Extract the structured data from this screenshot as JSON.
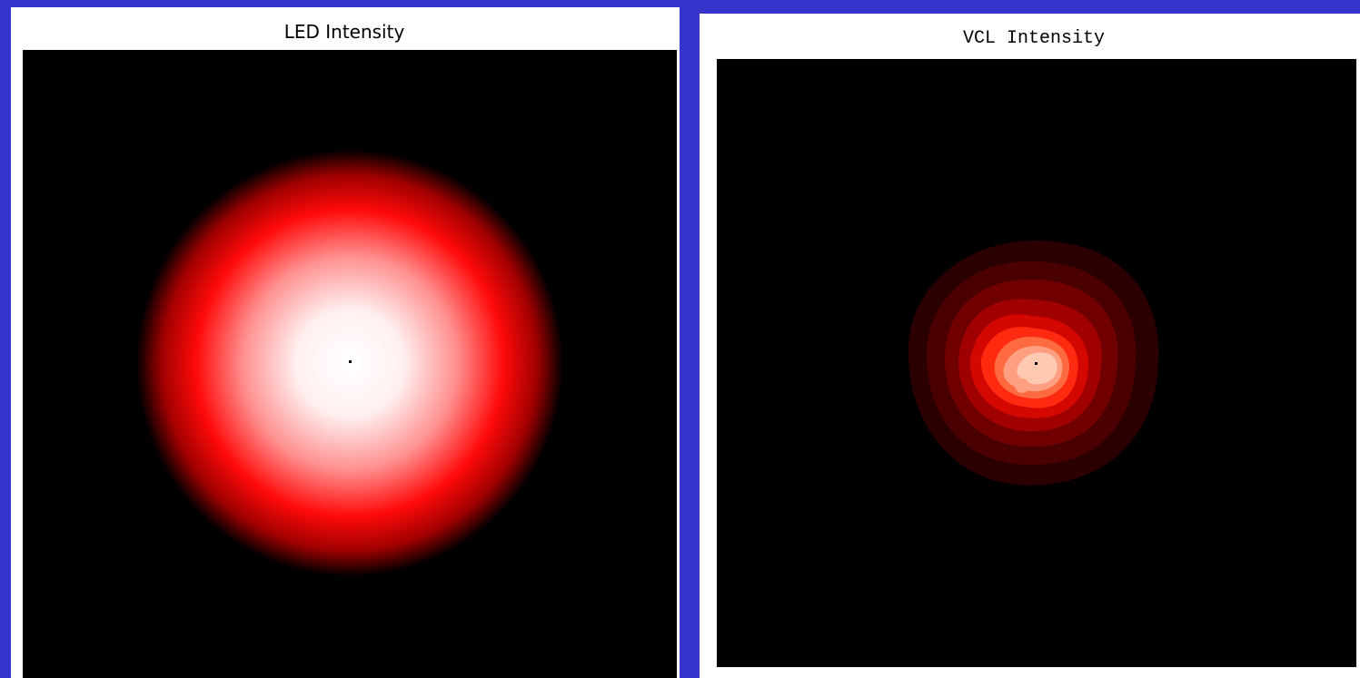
{
  "left_panel": {
    "title": "LED Intensity"
  },
  "right_panel": {
    "title": "VCL Intensity"
  }
}
